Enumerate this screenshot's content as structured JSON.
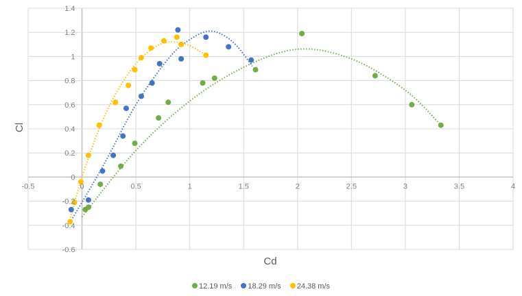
{
  "chart_data": {
    "type": "scatter",
    "title": "",
    "xlabel": "Cd",
    "ylabel": "Cl",
    "xlim": [
      -0.5,
      4
    ],
    "ylim": [
      -0.6,
      1.4
    ],
    "x_ticks": [
      "-0.5",
      "0",
      "0.5",
      "1",
      "1.5",
      "2",
      "2.5",
      "3",
      "3.5",
      "4"
    ],
    "y_ticks": [
      "1.4",
      "1.2",
      "1",
      "0.8",
      "0.6",
      "0.4",
      "0.2",
      "0",
      "-0.2",
      "-0.4",
      "-0.6"
    ],
    "grid": true,
    "legend_position": "bottom",
    "trendline": "polynomial (dotted)",
    "series": [
      {
        "name": "12.19 m/s",
        "color": "#70ad47",
        "points": [
          [
            0.03,
            -0.27
          ],
          [
            0.06,
            -0.25
          ],
          [
            0.17,
            -0.06
          ],
          [
            0.36,
            0.09
          ],
          [
            0.49,
            0.28
          ],
          [
            0.71,
            0.49
          ],
          [
            0.8,
            0.62
          ],
          [
            1.12,
            0.78
          ],
          [
            1.23,
            0.82
          ],
          [
            1.61,
            0.89
          ],
          [
            2.04,
            1.19
          ],
          [
            2.72,
            0.84
          ],
          [
            3.06,
            0.6
          ],
          [
            3.33,
            0.43
          ]
        ],
        "trend": [
          [
            0.0,
            -0.33
          ],
          [
            0.5,
            0.22
          ],
          [
            1.0,
            0.63
          ],
          [
            1.5,
            0.91
          ],
          [
            2.0,
            1.06
          ],
          [
            2.5,
            0.98
          ],
          [
            3.0,
            0.72
          ],
          [
            3.33,
            0.43
          ]
        ]
      },
      {
        "name": "18.29 m/s",
        "color": "#4472c4",
        "points": [
          [
            -0.1,
            -0.27
          ],
          [
            0.06,
            -0.19
          ],
          [
            0.19,
            0.05
          ],
          [
            0.29,
            0.18
          ],
          [
            0.38,
            0.34
          ],
          [
            0.41,
            0.57
          ],
          [
            0.55,
            0.67
          ],
          [
            0.65,
            0.78
          ],
          [
            0.72,
            0.94
          ],
          [
            0.89,
            1.22
          ],
          [
            0.92,
            0.98
          ],
          [
            1.15,
            1.16
          ],
          [
            1.36,
            1.08
          ],
          [
            1.57,
            0.97
          ]
        ],
        "trend": [
          [
            -0.1,
            -0.36
          ],
          [
            0.2,
            0.1
          ],
          [
            0.5,
            0.6
          ],
          [
            0.8,
            0.98
          ],
          [
            1.0,
            1.14
          ],
          [
            1.2,
            1.21
          ],
          [
            1.4,
            1.12
          ],
          [
            1.58,
            0.92
          ]
        ]
      },
      {
        "name": "24.38 m/s",
        "color": "#ffc000",
        "points": [
          [
            -0.11,
            -0.37
          ],
          [
            -0.07,
            -0.21
          ],
          [
            -0.01,
            -0.04
          ],
          [
            0.06,
            0.18
          ],
          [
            0.16,
            0.43
          ],
          [
            0.31,
            0.62
          ],
          [
            0.43,
            0.76
          ],
          [
            0.49,
            0.89
          ],
          [
            0.55,
            0.99
          ],
          [
            0.64,
            1.07
          ],
          [
            0.76,
            1.13
          ],
          [
            0.88,
            1.16
          ],
          [
            0.92,
            1.1
          ],
          [
            1.15,
            1.01
          ]
        ],
        "trend": [
          [
            -0.12,
            -0.38
          ],
          [
            0.0,
            0.0
          ],
          [
            0.15,
            0.38
          ],
          [
            0.3,
            0.67
          ],
          [
            0.5,
            0.94
          ],
          [
            0.7,
            1.09
          ],
          [
            0.85,
            1.12
          ],
          [
            1.0,
            1.09
          ],
          [
            1.15,
            1.01
          ]
        ]
      }
    ]
  },
  "axes": {
    "x_title": "Cd",
    "y_title": "Cl"
  },
  "legend": {
    "items": [
      {
        "label": "12.19 m/s",
        "color": "#70ad47"
      },
      {
        "label": "18.29 m/s",
        "color": "#4472c4"
      },
      {
        "label": "24.38 m/s",
        "color": "#ffc000"
      }
    ]
  }
}
